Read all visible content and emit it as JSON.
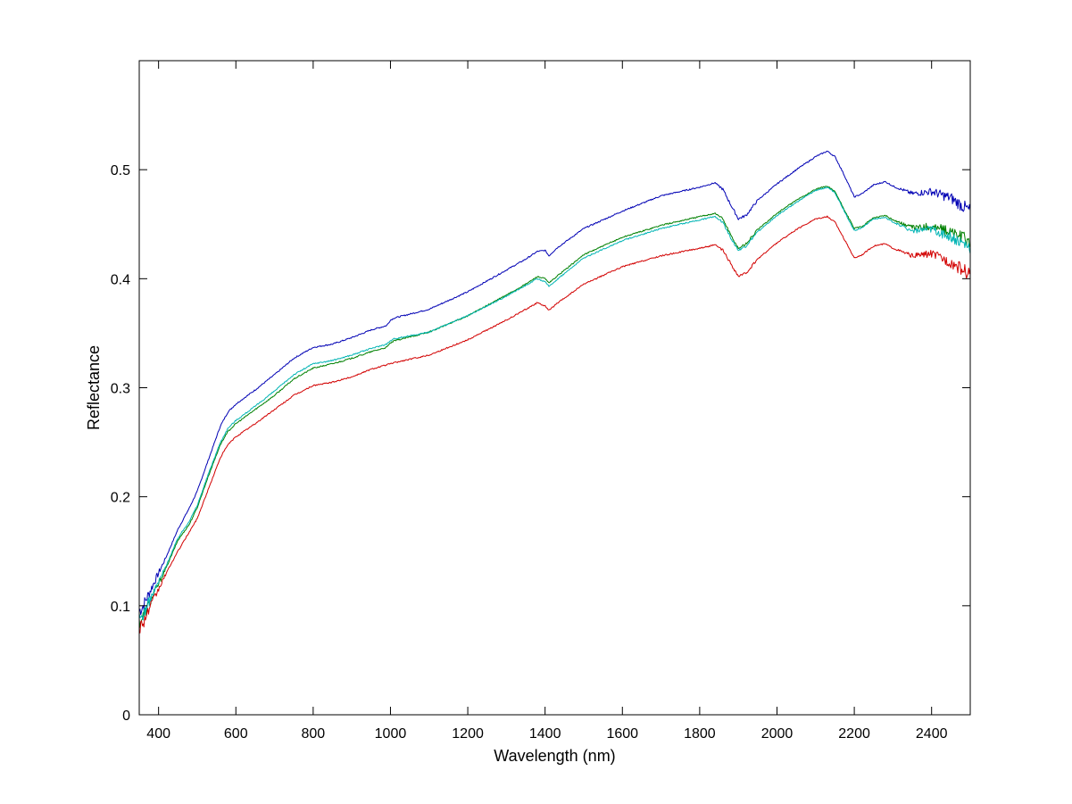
{
  "chart_data": {
    "type": "line",
    "title": "",
    "xlabel": "Wavelength (nm)",
    "ylabel": "Reflectance",
    "xlim": [
      350,
      2500
    ],
    "ylim": [
      0,
      0.6
    ],
    "xticks": [
      400,
      600,
      800,
      1000,
      1200,
      1400,
      1600,
      1800,
      2000,
      2200,
      2400
    ],
    "yticks": [
      0,
      0.1,
      0.2,
      0.3,
      0.4,
      0.5
    ],
    "ytick_labels": [
      "0",
      "0.1",
      "0.2",
      "0.3",
      "0.4",
      "0.5"
    ],
    "grid": false,
    "legend": "none",
    "x": [
      350,
      360,
      380,
      400,
      420,
      450,
      480,
      500,
      530,
      560,
      580,
      600,
      650,
      700,
      750,
      800,
      850,
      900,
      950,
      990,
      1000,
      1010,
      1100,
      1200,
      1300,
      1350,
      1380,
      1400,
      1410,
      1430,
      1500,
      1600,
      1700,
      1800,
      1840,
      1860,
      1880,
      1900,
      1920,
      1950,
      2000,
      2050,
      2100,
      2130,
      2150,
      2170,
      2200,
      2220,
      2250,
      2280,
      2300,
      2350,
      2400,
      2450,
      2500
    ],
    "series": [
      {
        "color": "#0000b4",
        "values": [
          0.095,
          0.1,
          0.115,
          0.13,
          0.145,
          0.17,
          0.19,
          0.205,
          0.235,
          0.265,
          0.278,
          0.285,
          0.298,
          0.312,
          0.327,
          0.337,
          0.34,
          0.346,
          0.353,
          0.357,
          0.362,
          0.364,
          0.372,
          0.388,
          0.408,
          0.418,
          0.425,
          0.426,
          0.421,
          0.428,
          0.446,
          0.462,
          0.476,
          0.484,
          0.488,
          0.482,
          0.468,
          0.455,
          0.458,
          0.472,
          0.487,
          0.5,
          0.512,
          0.517,
          0.512,
          0.498,
          0.475,
          0.478,
          0.486,
          0.489,
          0.485,
          0.478,
          0.48,
          0.474,
          0.462
        ]
      },
      {
        "color": "#008000",
        "values": [
          0.085,
          0.09,
          0.105,
          0.12,
          0.135,
          0.16,
          0.175,
          0.19,
          0.22,
          0.248,
          0.26,
          0.267,
          0.28,
          0.293,
          0.308,
          0.318,
          0.322,
          0.327,
          0.333,
          0.337,
          0.341,
          0.343,
          0.351,
          0.366,
          0.385,
          0.395,
          0.402,
          0.4,
          0.396,
          0.402,
          0.422,
          0.438,
          0.449,
          0.457,
          0.46,
          0.455,
          0.44,
          0.428,
          0.432,
          0.445,
          0.46,
          0.472,
          0.482,
          0.485,
          0.48,
          0.466,
          0.446,
          0.448,
          0.456,
          0.458,
          0.454,
          0.447,
          0.448,
          0.443,
          0.434
        ]
      },
      {
        "color": "#00b4b4",
        "values": [
          0.087,
          0.092,
          0.107,
          0.122,
          0.137,
          0.162,
          0.178,
          0.192,
          0.222,
          0.25,
          0.263,
          0.27,
          0.283,
          0.297,
          0.312,
          0.322,
          0.325,
          0.33,
          0.336,
          0.34,
          0.343,
          0.345,
          0.351,
          0.366,
          0.384,
          0.394,
          0.4,
          0.397,
          0.393,
          0.399,
          0.419,
          0.435,
          0.446,
          0.454,
          0.457,
          0.452,
          0.438,
          0.426,
          0.43,
          0.443,
          0.458,
          0.47,
          0.481,
          0.484,
          0.479,
          0.465,
          0.444,
          0.447,
          0.455,
          0.456,
          0.452,
          0.444,
          0.445,
          0.438,
          0.428
        ]
      },
      {
        "color": "#d20000",
        "values": [
          0.08,
          0.085,
          0.1,
          0.115,
          0.13,
          0.15,
          0.168,
          0.18,
          0.208,
          0.236,
          0.248,
          0.255,
          0.267,
          0.28,
          0.293,
          0.302,
          0.305,
          0.31,
          0.317,
          0.321,
          0.322,
          0.323,
          0.33,
          0.344,
          0.362,
          0.372,
          0.378,
          0.375,
          0.371,
          0.377,
          0.395,
          0.411,
          0.421,
          0.428,
          0.431,
          0.426,
          0.414,
          0.402,
          0.405,
          0.418,
          0.433,
          0.445,
          0.455,
          0.457,
          0.452,
          0.439,
          0.419,
          0.422,
          0.43,
          0.432,
          0.428,
          0.421,
          0.423,
          0.415,
          0.404
        ]
      }
    ]
  }
}
